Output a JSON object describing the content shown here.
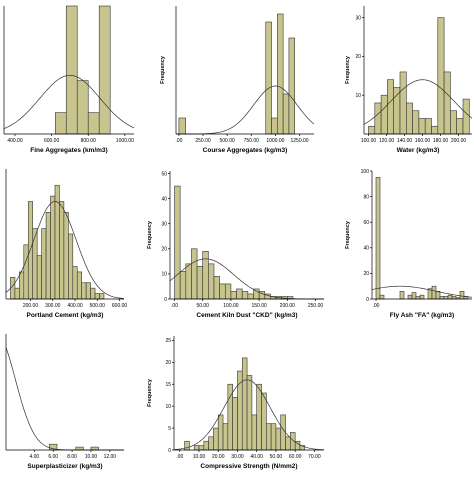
{
  "chart_data": [
    {
      "type": "bar",
      "id": "fine",
      "xlabel": "Fine Aggregates (km/m3)",
      "ylabel": "",
      "xlim": [
        340,
        1050
      ],
      "ylim": [
        0,
        12
      ],
      "xticks": [
        400,
        600,
        800,
        1000
      ],
      "xtick_labels": [
        "400.00",
        "600.00",
        "800.00",
        "1000.00"
      ],
      "yticks": [],
      "ytick_labels": [],
      "bins": [
        [
          620,
          680,
          2
        ],
        [
          680,
          740,
          12
        ],
        [
          740,
          800,
          5
        ],
        [
          800,
          860,
          2
        ],
        [
          860,
          920,
          12
        ]
      ],
      "curve": {
        "mean": 700,
        "sd": 165,
        "peak": 5.5
      }
    },
    {
      "type": "bar",
      "id": "course",
      "xlabel": "Course Aggregates (kg/m3)",
      "ylabel": "Frequency",
      "xlim": [
        -30,
        1400
      ],
      "ylim": [
        0,
        16
      ],
      "xticks": [
        0,
        250,
        500,
        750,
        1000,
        1250
      ],
      "xtick_labels": [
        ".00",
        "250.00",
        "500.00",
        "750.00",
        "1000.00",
        "1250.00"
      ],
      "yticks": [],
      "ytick_labels": [],
      "bins": [
        [
          0,
          70,
          2
        ],
        [
          900,
          960,
          14
        ],
        [
          960,
          1020,
          2
        ],
        [
          1020,
          1080,
          15
        ],
        [
          1080,
          1140,
          5
        ],
        [
          1140,
          1200,
          12
        ]
      ],
      "curve": {
        "mean": 1000,
        "sd": 225,
        "peak": 6
      }
    },
    {
      "type": "bar",
      "id": "water",
      "xlabel": "Water (kg/m3)",
      "ylabel": "Frequency",
      "xlim": [
        95,
        215
      ],
      "ylim": [
        0,
        33
      ],
      "xticks": [
        100,
        120,
        140,
        160,
        180,
        200
      ],
      "xtick_labels": [
        "100.00",
        "120.00",
        "140.00",
        "160.00",
        "180.00",
        "200.00"
      ],
      "yticks": [
        10,
        20,
        30
      ],
      "ytick_labels": [
        "10",
        "20",
        "30"
      ],
      "bins": [
        [
          100,
          107,
          2
        ],
        [
          107,
          114,
          8
        ],
        [
          114,
          121,
          10
        ],
        [
          121,
          128,
          14
        ],
        [
          128,
          135,
          12
        ],
        [
          135,
          142,
          16
        ],
        [
          142,
          149,
          8
        ],
        [
          149,
          156,
          6
        ],
        [
          156,
          163,
          4
        ],
        [
          163,
          170,
          4
        ],
        [
          170,
          177,
          2
        ],
        [
          177,
          184,
          30
        ],
        [
          184,
          191,
          16
        ],
        [
          191,
          198,
          6
        ],
        [
          198,
          205,
          4
        ],
        [
          205,
          212,
          9
        ]
      ],
      "curve": {
        "mean": 160,
        "sd": 35,
        "peak": 14
      }
    },
    {
      "type": "bar",
      "id": "portland",
      "xlabel": "Portland Cement (kg/m3)",
      "ylabel": "",
      "xlim": [
        90,
        620
      ],
      "ylim": [
        0,
        24
      ],
      "xticks": [
        200,
        300,
        400,
        500,
        600
      ],
      "xtick_labels": [
        "200.00",
        "300.00",
        "400.00",
        "500.00",
        "600.00"
      ],
      "yticks": [],
      "ytick_labels": [],
      "bins": [
        [
          110,
          130,
          4
        ],
        [
          130,
          150,
          2
        ],
        [
          150,
          170,
          5
        ],
        [
          170,
          190,
          10
        ],
        [
          190,
          210,
          18
        ],
        [
          210,
          230,
          13
        ],
        [
          230,
          250,
          8
        ],
        [
          250,
          270,
          13
        ],
        [
          270,
          290,
          16
        ],
        [
          290,
          310,
          19
        ],
        [
          310,
          330,
          21
        ],
        [
          330,
          350,
          18
        ],
        [
          350,
          370,
          16
        ],
        [
          370,
          390,
          12
        ],
        [
          390,
          410,
          6
        ],
        [
          410,
          430,
          5
        ],
        [
          430,
          450,
          3
        ],
        [
          450,
          470,
          3
        ],
        [
          470,
          490,
          2
        ],
        [
          490,
          510,
          1
        ],
        [
          510,
          530,
          1
        ]
      ],
      "curve": {
        "mean": 310,
        "sd": 95,
        "peak": 18
      }
    },
    {
      "type": "bar",
      "id": "ckd",
      "xlabel": "Cement Kiln Dust \"CKD\" (kg/m3)",
      "ylabel": "Frequency",
      "xlim": [
        -8,
        265
      ],
      "ylim": [
        0,
        51
      ],
      "xticks": [
        0,
        50,
        100,
        150,
        200,
        250
      ],
      "xtick_labels": [
        ".00",
        "50.00",
        "100.00",
        "150.00",
        "200.00",
        "250.00"
      ],
      "yticks": [
        0,
        10,
        20,
        30,
        40,
        50
      ],
      "ytick_labels": [
        "0",
        "10",
        "20",
        "30",
        "40",
        "50"
      ],
      "bins": [
        [
          0,
          10,
          45
        ],
        [
          10,
          20,
          11
        ],
        [
          20,
          30,
          14
        ],
        [
          30,
          40,
          20
        ],
        [
          40,
          50,
          13
        ],
        [
          50,
          60,
          19
        ],
        [
          60,
          70,
          14
        ],
        [
          70,
          80,
          9
        ],
        [
          80,
          90,
          6
        ],
        [
          90,
          100,
          6
        ],
        [
          100,
          110,
          3
        ],
        [
          110,
          120,
          4
        ],
        [
          120,
          130,
          3
        ],
        [
          130,
          140,
          2
        ],
        [
          140,
          150,
          4
        ],
        [
          150,
          160,
          3
        ],
        [
          160,
          170,
          2
        ],
        [
          170,
          180,
          1
        ],
        [
          180,
          190,
          1
        ],
        [
          190,
          200,
          1
        ],
        [
          200,
          210,
          1
        ]
      ],
      "curve": {
        "mean": 55,
        "sd": 50,
        "peak": 16
      }
    },
    {
      "type": "bar",
      "id": "flyash",
      "xlabel": "Fly Ash \"FA\" (kg/m3)",
      "ylabel": "Frequency",
      "xlim": [
        -10,
        240
      ],
      "ylim": [
        0,
        100
      ],
      "xticks": [
        0
      ],
      "xtick_labels": [
        ".00"
      ],
      "yticks": [
        0,
        20,
        40,
        60,
        80,
        100
      ],
      "ytick_labels": [
        "0",
        "20",
        "40",
        "60",
        "80",
        "100"
      ],
      "bins": [
        [
          0,
          10,
          95
        ],
        [
          10,
          20,
          3
        ],
        [
          60,
          70,
          6
        ],
        [
          80,
          90,
          3
        ],
        [
          90,
          100,
          5
        ],
        [
          100,
          110,
          2
        ],
        [
          110,
          120,
          3
        ],
        [
          130,
          140,
          8
        ],
        [
          140,
          150,
          10
        ],
        [
          150,
          160,
          6
        ],
        [
          160,
          170,
          2
        ],
        [
          170,
          180,
          2
        ],
        [
          180,
          190,
          3
        ],
        [
          190,
          200,
          2
        ],
        [
          200,
          210,
          1
        ],
        [
          210,
          220,
          6
        ],
        [
          220,
          230,
          2
        ]
      ],
      "curve": {
        "mean": 60,
        "sd": 90,
        "peak": 10
      }
    },
    {
      "type": "bar",
      "id": "superplasticizer",
      "xlabel": "Superplasticizer (kg/m3)",
      "ylabel": "",
      "xlim": [
        1,
        13.5
      ],
      "ylim": [
        0,
        40
      ],
      "xticks": [
        4,
        6,
        8,
        10,
        12
      ],
      "xtick_labels": [
        "4.00",
        "6.00",
        "8.00",
        "10.00",
        "12.00"
      ],
      "yticks": [],
      "ytick_labels": [],
      "bins": [
        [
          5.6,
          6.4,
          2
        ],
        [
          8.4,
          9.2,
          1
        ],
        [
          10.0,
          10.8,
          1
        ]
      ],
      "curve": {
        "mean": 0,
        "sd": 2,
        "peak": 40
      }
    },
    {
      "type": "bar",
      "id": "compressive",
      "xlabel": "Compressive Strength (N/mm2)",
      "ylabel": "Frequency",
      "xlim": [
        -3,
        75
      ],
      "ylim": [
        0,
        26
      ],
      "xticks": [
        0,
        10,
        20,
        30,
        40,
        50,
        60,
        70
      ],
      "xtick_labels": [
        ".00",
        "10.00",
        "20.00",
        "30.00",
        "40.00",
        "50.00",
        "60.00",
        "70.00"
      ],
      "yticks": [
        0,
        5,
        10,
        15,
        20,
        25
      ],
      "ytick_labels": [
        "0",
        "5",
        "10",
        "15",
        "20",
        "25"
      ],
      "bins": [
        [
          2.5,
          5,
          2
        ],
        [
          7.5,
          10,
          1
        ],
        [
          10,
          12.5,
          1
        ],
        [
          12.5,
          15,
          2
        ],
        [
          15,
          17.5,
          3
        ],
        [
          17.5,
          20,
          5
        ],
        [
          20,
          22.5,
          8
        ],
        [
          22.5,
          25,
          6
        ],
        [
          25,
          27.5,
          15
        ],
        [
          27.5,
          30,
          12
        ],
        [
          30,
          32.5,
          18
        ],
        [
          32.5,
          35,
          21
        ],
        [
          35,
          37.5,
          17
        ],
        [
          37.5,
          40,
          8
        ],
        [
          40,
          42.5,
          15
        ],
        [
          42.5,
          45,
          13
        ],
        [
          45,
          47.5,
          6
        ],
        [
          47.5,
          50,
          6
        ],
        [
          50,
          52.5,
          5
        ],
        [
          52.5,
          55,
          8
        ],
        [
          55,
          57.5,
          3
        ],
        [
          57.5,
          60,
          4
        ],
        [
          60,
          62.5,
          2
        ],
        [
          62.5,
          65,
          1
        ]
      ],
      "curve": {
        "mean": 35,
        "sd": 12,
        "peak": 16
      }
    }
  ]
}
